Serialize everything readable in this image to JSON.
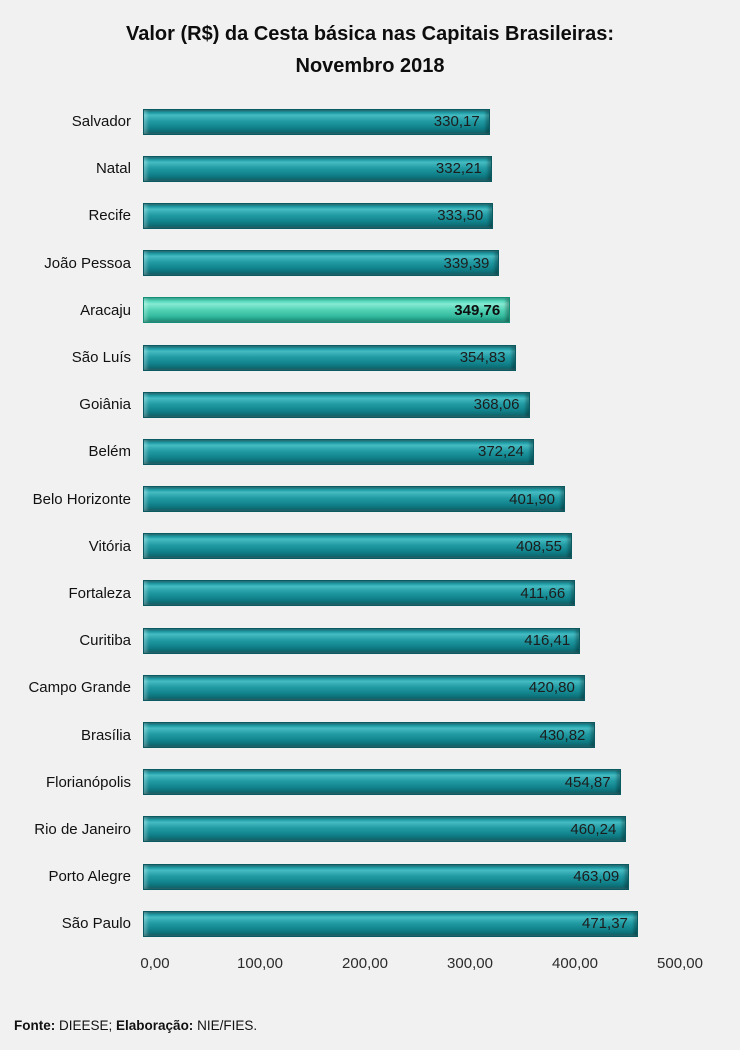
{
  "title": {
    "line1": "Valor (R$) da Cesta básica nas Capitais Brasileiras:",
    "line2": "Novembro 2018"
  },
  "chart_data": {
    "type": "bar",
    "orientation": "horizontal",
    "title": "Valor (R$) da Cesta básica nas Capitais Brasileiras: Novembro 2018",
    "categories": [
      "Salvador",
      "Natal",
      "Recife",
      "João Pessoa",
      "Aracaju",
      "São Luís",
      "Goiânia",
      "Belém",
      "Belo Horizonte",
      "Vitória",
      "Fortaleza",
      "Curitiba",
      "Campo Grande",
      "Brasília",
      "Florianópolis",
      "Rio de Janeiro",
      "Porto Alegre",
      "São Paulo"
    ],
    "values": [
      330.17,
      332.21,
      333.5,
      339.39,
      349.76,
      354.83,
      368.06,
      372.24,
      401.9,
      408.55,
      411.66,
      416.41,
      420.8,
      430.82,
      454.87,
      460.24,
      463.09,
      471.37
    ],
    "value_labels": [
      "330,17",
      "332,21",
      "333,50",
      "339,39",
      "349,76",
      "354,83",
      "368,06",
      "372,24",
      "401,90",
      "408,55",
      "411,66",
      "416,41",
      "420,80",
      "430,82",
      "454,87",
      "460,24",
      "463,09",
      "471,37"
    ],
    "highlight_category": "Aracaju",
    "highlight_index": 4,
    "x_ticks": [
      "0,00",
      "100,00",
      "200,00",
      "300,00",
      "400,00",
      "500,00"
    ],
    "x_tick_values": [
      0,
      100,
      200,
      300,
      400,
      500
    ],
    "xlim": [
      0,
      500
    ],
    "grid": false,
    "legend": false,
    "bar_color": "#12858E",
    "highlight_color": "#52D2B5",
    "background_color": "#F1F1F1",
    "value_labels_inside_bar": true
  },
  "footer": {
    "fonte_label": "Fonte:",
    "fonte_value": " DIEESE; ",
    "elaboracao_label": "Elaboração:",
    "elaboracao_value": " NIE/FIES."
  }
}
